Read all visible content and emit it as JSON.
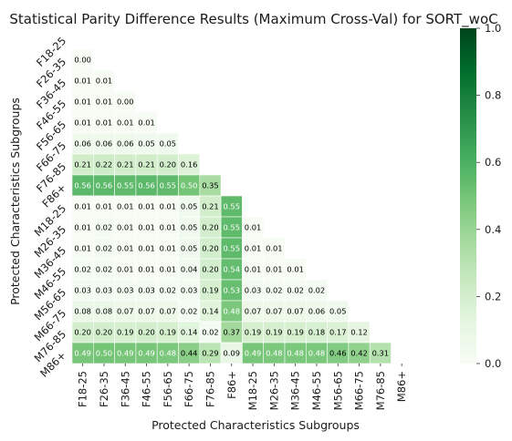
{
  "chart_data": {
    "type": "heatmap",
    "title": "Statistical Parity Difference Results (Maximum Cross-Val) for SORT_woC",
    "xlabel": "Protected Characteristics Subgroups",
    "ylabel": "Protected Characteristics Subgroups",
    "categories": [
      "F18-25",
      "F26-35",
      "F36-45",
      "F46-55",
      "F56-65",
      "F66-75",
      "F76-85",
      "F86+",
      "M18-25",
      "M26-35",
      "M36-45",
      "M46-55",
      "M56-65",
      "M66-75",
      "M76-85",
      "M86+"
    ],
    "mask": "upper-triangle-including-diagonal",
    "values": [
      [],
      [
        0.0
      ],
      [
        0.01,
        0.01
      ],
      [
        0.01,
        0.01,
        0.0
      ],
      [
        0.01,
        0.01,
        0.01,
        0.01
      ],
      [
        0.06,
        0.06,
        0.06,
        0.05,
        0.05
      ],
      [
        0.21,
        0.22,
        0.21,
        0.21,
        0.2,
        0.16
      ],
      [
        0.56,
        0.56,
        0.55,
        0.56,
        0.55,
        0.5,
        0.35
      ],
      [
        0.01,
        0.01,
        0.01,
        0.01,
        0.01,
        0.05,
        0.21,
        0.55
      ],
      [
        0.01,
        0.02,
        0.01,
        0.01,
        0.01,
        0.05,
        0.2,
        0.55,
        0.01
      ],
      [
        0.01,
        0.02,
        0.01,
        0.01,
        0.01,
        0.05,
        0.2,
        0.55,
        0.01,
        0.01
      ],
      [
        0.02,
        0.02,
        0.01,
        0.01,
        0.01,
        0.04,
        0.2,
        0.54,
        0.01,
        0.01,
        0.01
      ],
      [
        0.03,
        0.03,
        0.03,
        0.03,
        0.02,
        0.03,
        0.19,
        0.53,
        0.03,
        0.02,
        0.02,
        0.02
      ],
      [
        0.08,
        0.08,
        0.07,
        0.07,
        0.07,
        0.02,
        0.14,
        0.48,
        0.07,
        0.07,
        0.07,
        0.06,
        0.05
      ],
      [
        0.2,
        0.2,
        0.19,
        0.2,
        0.19,
        0.14,
        0.02,
        0.37,
        0.19,
        0.19,
        0.19,
        0.18,
        0.17,
        0.12
      ],
      [
        0.49,
        0.5,
        0.49,
        0.49,
        0.48,
        0.44,
        0.29,
        0.09,
        0.49,
        0.48,
        0.48,
        0.48,
        0.46,
        0.42,
        0.31
      ]
    ],
    "value_format": "2 decimals",
    "colormap": "Greens",
    "color_range": [
      0.0,
      1.0
    ],
    "colorbar_ticks": [
      "0.0",
      "0.2",
      "0.4",
      "0.6",
      "0.8",
      "1.0"
    ],
    "colors": {
      "low": "#f7fcf5",
      "high": "#00441b",
      "text_dark": "#000000",
      "text_light": "#ffffff"
    }
  }
}
